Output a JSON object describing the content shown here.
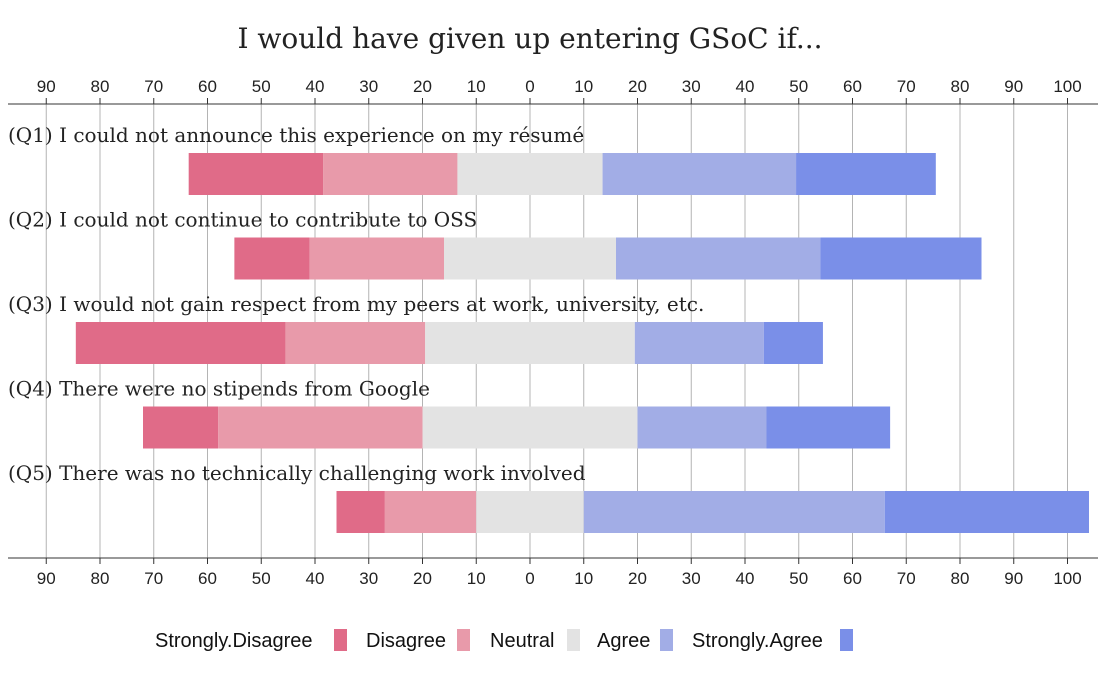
{
  "chart_data": {
    "type": "bar",
    "layout": "diverging-stacked-horizontal",
    "title": "I would have given up entering GSoC if...",
    "xlabel": "",
    "ylabel": "",
    "categories": [
      "(Q1) I could not announce this experience on my résumé",
      "(Q2) I could not continue to contribute to OSS",
      "(Q3) I would not gain respect from my peers at work, university, etc.",
      "(Q4) There were no stipends from Google",
      "(Q5) There was no technically challenging work involved"
    ],
    "series": [
      {
        "name": "Strongly.Disagree",
        "color": "#e06b88",
        "values": [
          25,
          14,
          39,
          14,
          9
        ]
      },
      {
        "name": "Disagree",
        "color": "#e89aaa",
        "values": [
          25,
          25,
          26,
          38,
          17
        ]
      },
      {
        "name": "Neutral",
        "color": "#e3e3e3",
        "values": [
          27,
          32,
          39,
          40,
          20
        ]
      },
      {
        "name": "Agree",
        "color": "#a2ade6",
        "values": [
          36,
          38,
          24,
          24,
          56
        ]
      },
      {
        "name": "Strongly.Agree",
        "color": "#7a8fe8",
        "values": [
          26,
          30,
          11,
          23,
          38
        ]
      }
    ],
    "neutral_split": "centered",
    "xlim": [
      -90,
      105
    ],
    "x_ticks": [
      -90,
      -80,
      -70,
      -60,
      -50,
      -40,
      -30,
      -20,
      -10,
      0,
      10,
      20,
      30,
      40,
      50,
      60,
      70,
      80,
      90,
      100
    ],
    "tick_labels": [
      "90",
      "80",
      "70",
      "60",
      "50",
      "40",
      "30",
      "20",
      "10",
      "0",
      "10",
      "20",
      "30",
      "40",
      "50",
      "60",
      "70",
      "80",
      "90",
      "100"
    ],
    "grid": true,
    "legend_position": "bottom"
  }
}
